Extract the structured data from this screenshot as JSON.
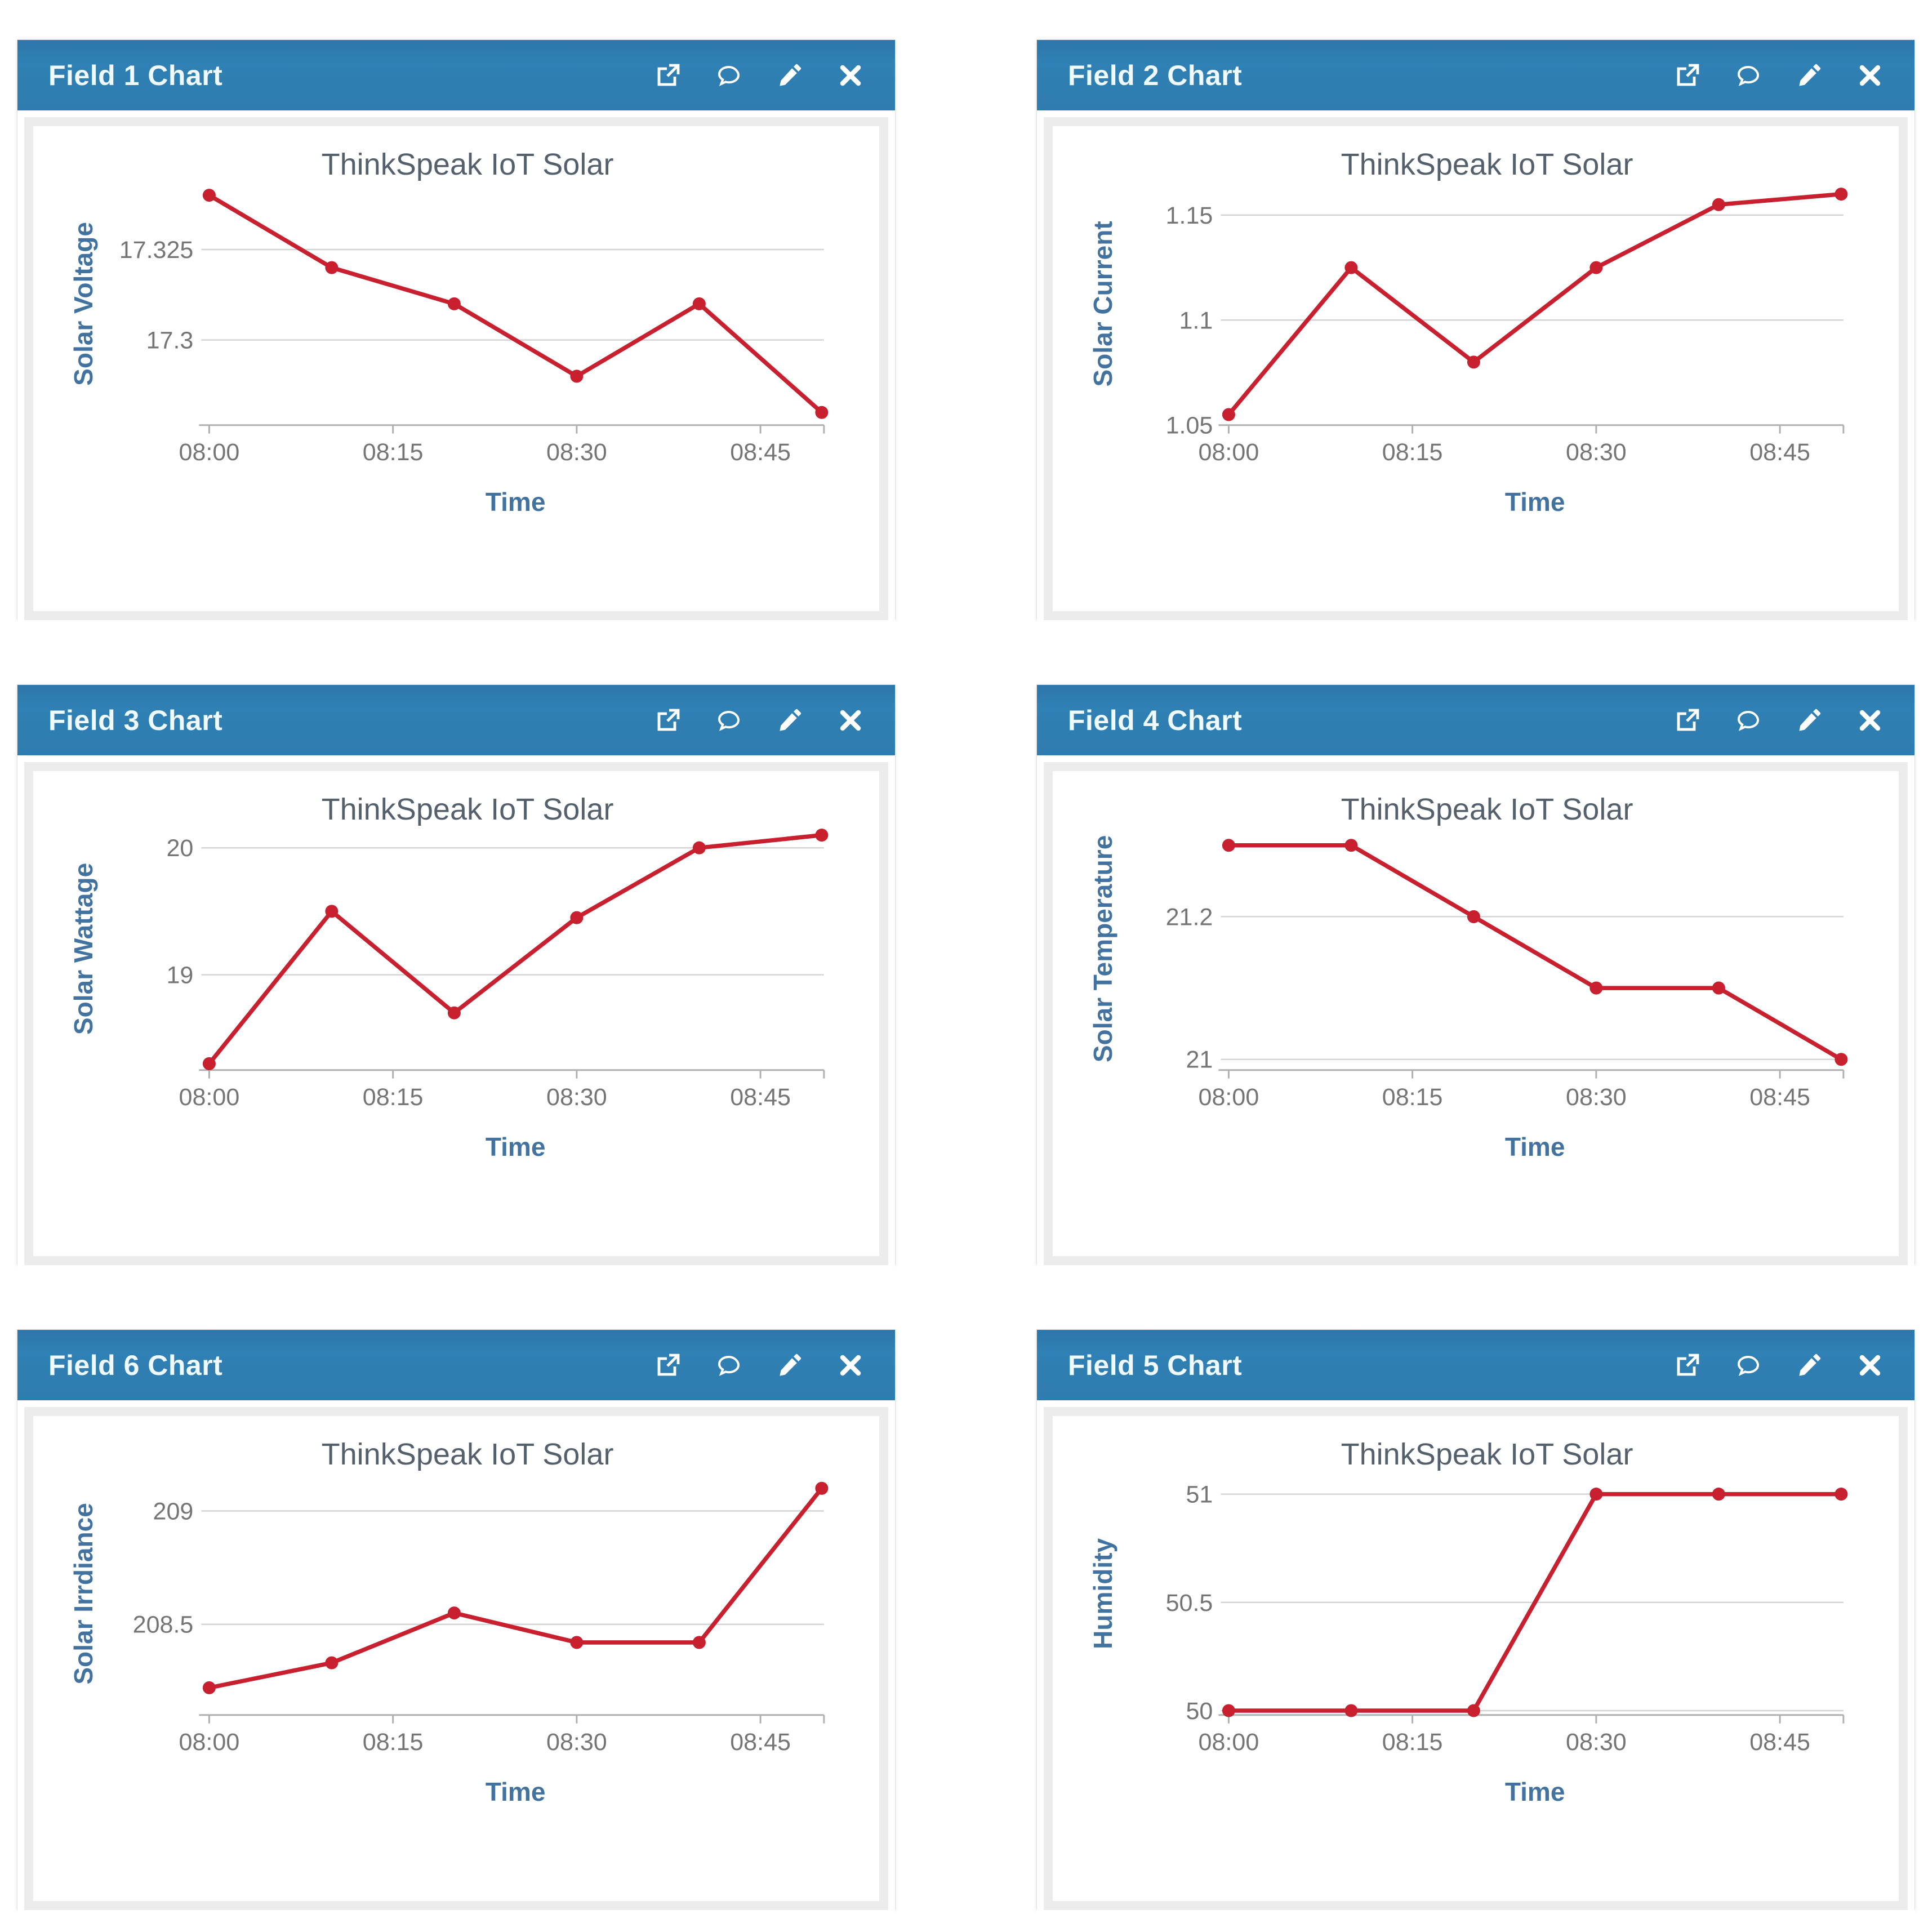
{
  "theme": {
    "page_bg": "#ffffff",
    "header_bg": "#2f7cb0",
    "header_text": "#eefaff",
    "icon_color": "#ffffff",
    "panel_frame": "#ececec",
    "card_bg": "#ffffff",
    "line_color": "#c8202f",
    "marker_color": "#c8202f",
    "grid_color": "#d4d4d4",
    "axis_color": "#b0b0b0",
    "tick_text_color": "#757575",
    "title_color": "#54606c",
    "axis_label_color": "#4273a0"
  },
  "header_icons": [
    {
      "name": "external-link"
    },
    {
      "name": "comment"
    },
    {
      "name": "edit"
    },
    {
      "name": "close"
    }
  ],
  "panels": [
    {
      "header": "Field 1 Chart"
    },
    {
      "header": "Field 2 Chart"
    },
    {
      "header": "Field 3 Chart"
    },
    {
      "header": "Field 4 Chart"
    },
    {
      "header": "Field 6 Chart"
    },
    {
      "header": "Field 5 Chart"
    }
  ],
  "chart_data": [
    {
      "panel": "Field 1 Chart",
      "type": "line",
      "title": "ThinkSpeak IoT Solar",
      "xlabel": "Time",
      "ylabel": "Solar Voltage",
      "x_minutes": [
        0,
        10,
        20,
        30,
        40,
        50
      ],
      "x_times": [
        "08:00",
        "08:10",
        "08:20",
        "08:30",
        "08:40",
        "08:50"
      ],
      "values": [
        17.34,
        17.32,
        17.31,
        17.29,
        17.31,
        17.28
      ],
      "xlim_minutes": [
        0,
        50
      ],
      "x_tick_minutes": [
        0,
        15,
        30,
        45
      ],
      "x_tick_labels": [
        "08:00",
        "08:15",
        "08:30",
        "08:45"
      ],
      "yticks": [
        17.3,
        17.325
      ],
      "ytick_labels": [
        "17.3",
        "17.325"
      ],
      "ylim": [
        17.2765,
        17.3435
      ],
      "grid": "horizontal",
      "legend": false
    },
    {
      "panel": "Field 2 Chart",
      "type": "line",
      "title": "ThinkSpeak IoT Solar",
      "xlabel": "Time",
      "ylabel": "Solar Current",
      "x_minutes": [
        0,
        10,
        20,
        30,
        40,
        50
      ],
      "x_times": [
        "08:00",
        "08:10",
        "08:20",
        "08:30",
        "08:40",
        "08:50"
      ],
      "values": [
        1.055,
        1.125,
        1.08,
        1.125,
        1.155,
        1.16
      ],
      "xlim_minutes": [
        0,
        50
      ],
      "x_tick_minutes": [
        0,
        15,
        30,
        45
      ],
      "x_tick_labels": [
        "08:00",
        "08:15",
        "08:30",
        "08:45"
      ],
      "yticks": [
        1.05,
        1.1,
        1.15
      ],
      "ytick_labels": [
        "1.05",
        "1.1",
        "1.15"
      ],
      "ylim": [
        1.05,
        1.1655
      ],
      "grid": "horizontal",
      "legend": false
    },
    {
      "panel": "Field 3 Chart",
      "type": "line",
      "title": "ThinkSpeak IoT Solar",
      "xlabel": "Time",
      "ylabel": "Solar Wattage",
      "x_minutes": [
        0,
        10,
        20,
        30,
        40,
        50
      ],
      "x_times": [
        "08:00",
        "08:10",
        "08:20",
        "08:30",
        "08:40",
        "08:50"
      ],
      "values": [
        18.3,
        19.5,
        18.7,
        19.45,
        20.0,
        20.1
      ],
      "xlim_minutes": [
        0,
        50
      ],
      "x_tick_minutes": [
        0,
        15,
        30,
        45
      ],
      "x_tick_labels": [
        "08:00",
        "08:15",
        "08:30",
        "08:45"
      ],
      "yticks": [
        19,
        20
      ],
      "ytick_labels": [
        "19",
        "20"
      ],
      "ylim": [
        18.25,
        20.16
      ],
      "grid": "horizontal",
      "legend": false
    },
    {
      "panel": "Field 4 Chart",
      "type": "line",
      "title": "ThinkSpeak IoT Solar",
      "xlabel": "Time",
      "ylabel": "Solar Temperature",
      "x_minutes": [
        0,
        10,
        20,
        30,
        40,
        50
      ],
      "x_times": [
        "08:00",
        "08:10",
        "08:20",
        "08:30",
        "08:40",
        "08:50"
      ],
      "values": [
        21.3,
        21.3,
        21.2,
        21.1,
        21.1,
        21.0
      ],
      "xlim_minutes": [
        0,
        50
      ],
      "x_tick_minutes": [
        0,
        15,
        30,
        45
      ],
      "x_tick_labels": [
        "08:00",
        "08:15",
        "08:30",
        "08:45"
      ],
      "yticks": [
        21,
        21.2
      ],
      "ytick_labels": [
        "21",
        "21.2"
      ],
      "ylim": [
        20.985,
        21.325
      ],
      "grid": "horizontal",
      "legend": false
    },
    {
      "panel": "Field 6 Chart",
      "type": "line",
      "title": "ThinkSpeak IoT Solar",
      "xlabel": "Time",
      "ylabel": "Solar Irrdiance",
      "x_minutes": [
        0,
        10,
        20,
        30,
        40,
        50
      ],
      "x_times": [
        "08:00",
        "08:10",
        "08:20",
        "08:30",
        "08:40",
        "08:50"
      ],
      "values": [
        208.22,
        208.33,
        208.55,
        208.42,
        208.42,
        209.1
      ],
      "xlim_minutes": [
        0,
        50
      ],
      "x_tick_minutes": [
        0,
        15,
        30,
        45
      ],
      "x_tick_labels": [
        "08:00",
        "08:15",
        "08:30",
        "08:45"
      ],
      "yticks": [
        208.5,
        209
      ],
      "ytick_labels": [
        "208.5",
        "209"
      ],
      "ylim": [
        208.1,
        209.17
      ],
      "grid": "horizontal",
      "legend": false
    },
    {
      "panel": "Field 5 Chart",
      "type": "line",
      "title": "ThinkSpeak IoT Solar",
      "xlabel": "Time",
      "ylabel": "Humidity",
      "x_minutes": [
        0,
        10,
        20,
        30,
        40,
        50
      ],
      "x_times": [
        "08:00",
        "08:10",
        "08:20",
        "08:30",
        "08:40",
        "08:50"
      ],
      "values": [
        50,
        50,
        50,
        51,
        51,
        51
      ],
      "xlim_minutes": [
        0,
        50
      ],
      "x_tick_minutes": [
        0,
        15,
        30,
        45
      ],
      "x_tick_labels": [
        "08:00",
        "08:15",
        "08:30",
        "08:45"
      ],
      "yticks": [
        50,
        50.5,
        51
      ],
      "ytick_labels": [
        "50",
        "50.5",
        "51"
      ],
      "ylim": [
        49.98,
        51.1
      ],
      "grid": "horizontal",
      "legend": false
    }
  ]
}
